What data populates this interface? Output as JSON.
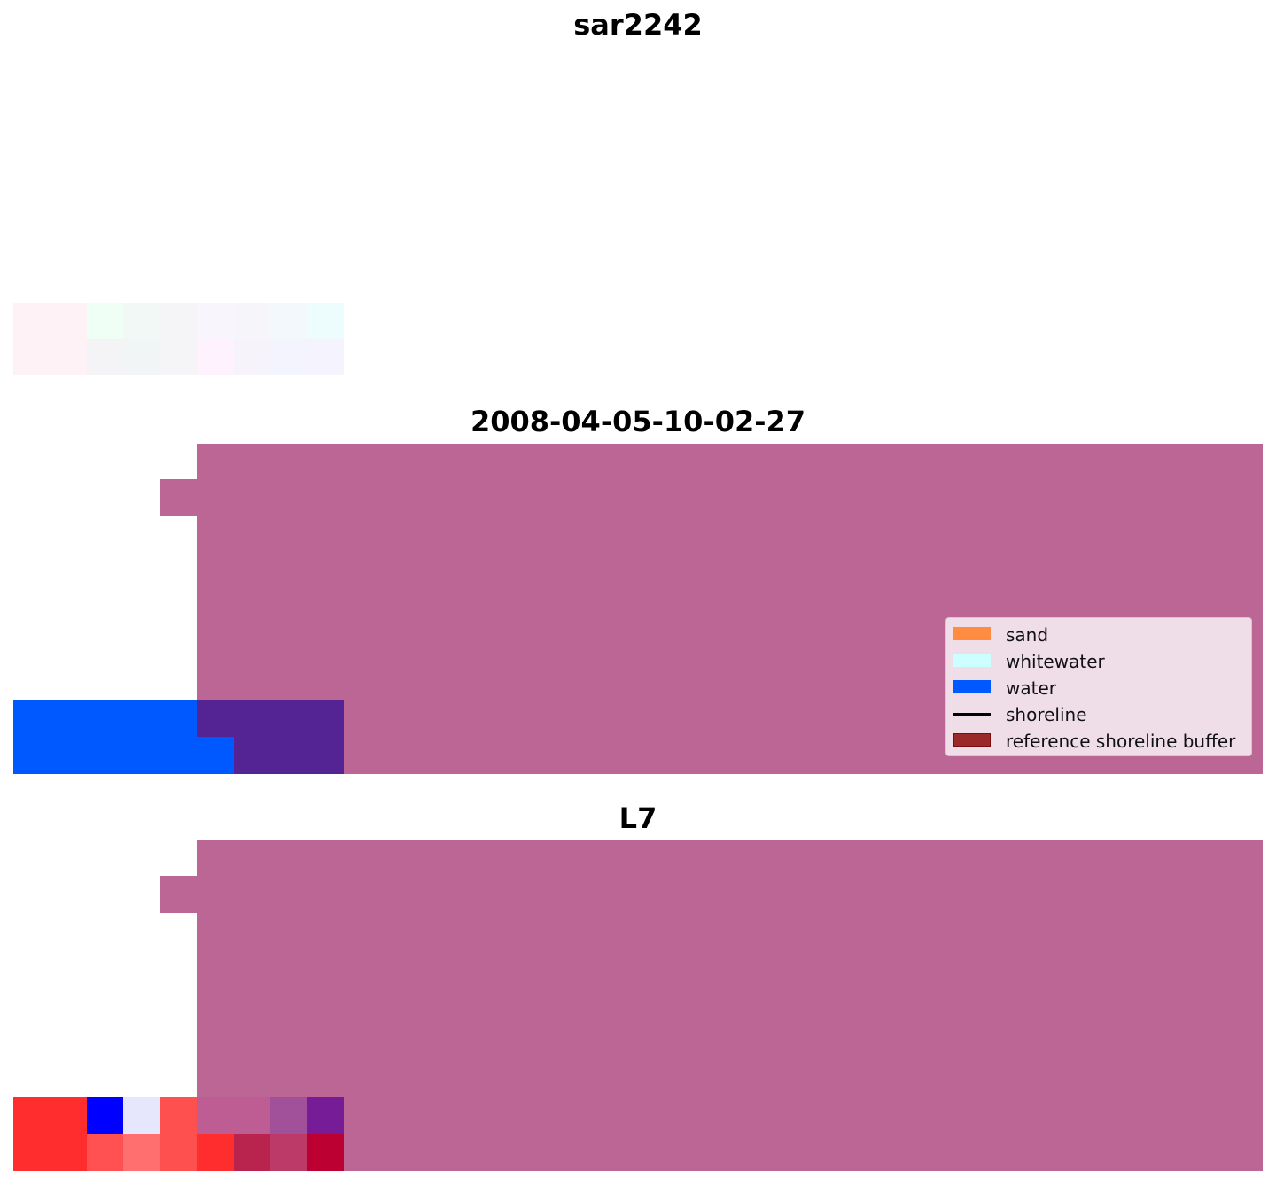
{
  "panels": [
    {
      "title": "sar2242"
    },
    {
      "title": "2008-04-05-10-02-27"
    },
    {
      "title": "L7"
    }
  ],
  "legend": {
    "items": [
      {
        "label": "sand",
        "color": "#ff8c40"
      },
      {
        "label": "whitewater",
        "color": "#ccffff"
      },
      {
        "label": "water",
        "color": "#0059ff"
      },
      {
        "label": "shoreline",
        "color": "#000000"
      },
      {
        "label": "reference shoreline buffer",
        "color": "#8b1a1a"
      }
    ]
  },
  "colors": {
    "buffer_fill": "#bc6695",
    "water_buffer_overlap": "#552494"
  }
}
